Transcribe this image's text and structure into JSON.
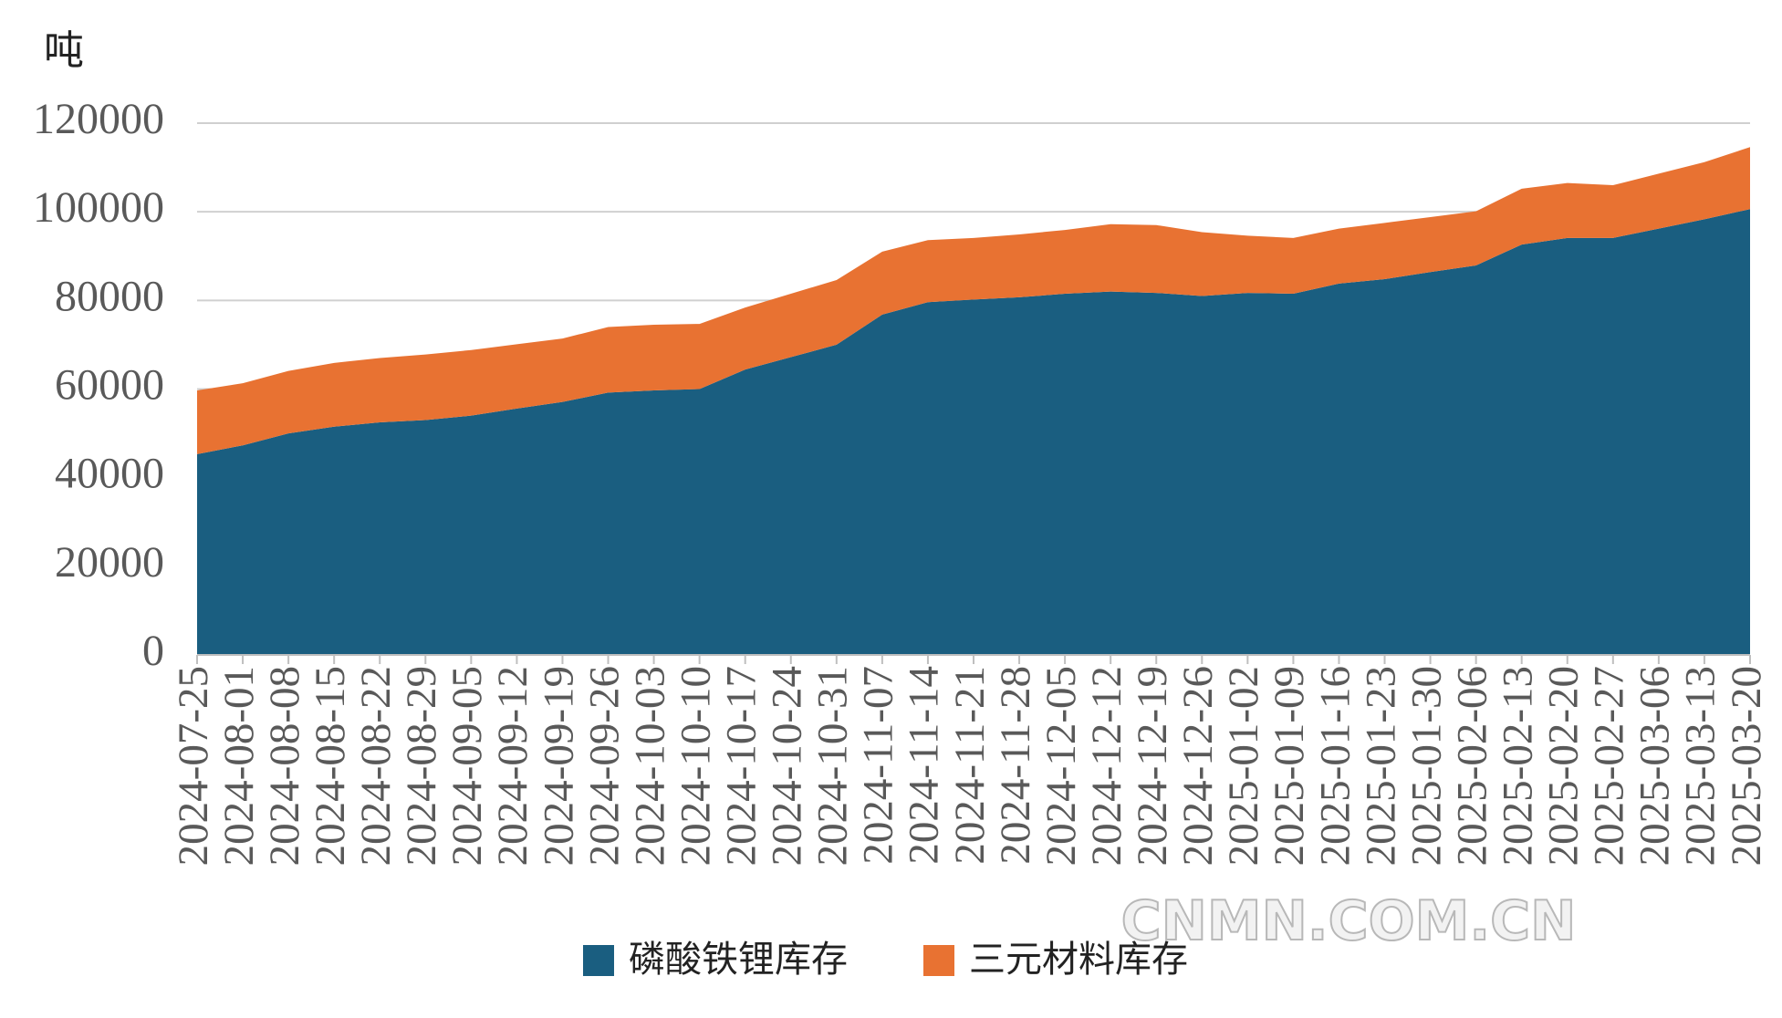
{
  "chart_data": {
    "type": "stacked_area",
    "unit_label": "吨",
    "watermark": "CNMN.COM.CN",
    "x": [
      "2024-07-25",
      "2024-08-01",
      "2024-08-08",
      "2024-08-15",
      "2024-08-22",
      "2024-08-29",
      "2024-09-05",
      "2024-09-12",
      "2024-09-19",
      "2024-09-26",
      "2024-10-03",
      "2024-10-10",
      "2024-10-17",
      "2024-10-24",
      "2024-10-31",
      "2024-11-07",
      "2024-11-14",
      "2024-11-21",
      "2024-11-28",
      "2024-12-05",
      "2024-12-12",
      "2024-12-19",
      "2024-12-26",
      "2025-01-02",
      "2025-01-09",
      "2025-01-16",
      "2025-01-23",
      "2025-01-30",
      "2025-02-06",
      "2025-02-13",
      "2025-02-20",
      "2025-02-27",
      "2025-03-06",
      "2025-03-13",
      "2025-03-20"
    ],
    "series": [
      {
        "name": "磷酸铁锂库存",
        "color": "#1a5e80",
        "values": [
          45300,
          47300,
          50000,
          51500,
          52500,
          53000,
          54000,
          55600,
          57100,
          59200,
          59700,
          60000,
          64400,
          67200,
          70000,
          76800,
          79600,
          80200,
          80700,
          81500,
          82000,
          81700,
          81000,
          81700,
          81500,
          83800,
          84800,
          86400,
          87900,
          92600,
          94100,
          94100,
          96200,
          98300,
          100600
        ]
      },
      {
        "name": "三元材料库存",
        "color": "#e87232",
        "values": [
          14400,
          14000,
          14100,
          14400,
          14500,
          14800,
          14800,
          14500,
          14300,
          14800,
          14800,
          14700,
          14000,
          14300,
          14600,
          14200,
          14000,
          13900,
          14200,
          14400,
          15200,
          15300,
          14400,
          12900,
          12600,
          12400,
          12700,
          12400,
          12200,
          12600,
          12400,
          11900,
          12400,
          12900,
          14000
        ]
      }
    ],
    "ylim": [
      0,
      120000
    ],
    "yticks": [
      0,
      20000,
      40000,
      60000,
      80000,
      100000,
      120000
    ],
    "grid": true
  }
}
